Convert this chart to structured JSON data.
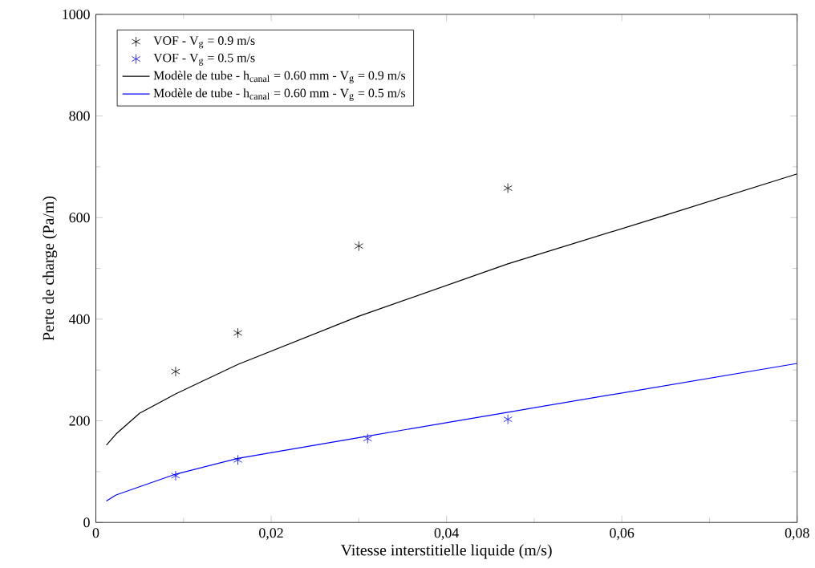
{
  "chart_data": {
    "type": "scatter",
    "xlabel": "Vitesse interstitielle liquide (m/s)",
    "ylabel": "Perte de charge (Pa/m)",
    "xlim": [
      0,
      0.08
    ],
    "ylim": [
      0,
      1000
    ],
    "xticks": [
      0,
      {
        "value": 0.02,
        "label": "0,02"
      },
      {
        "value": 0.04,
        "label": "0,04"
      },
      {
        "value": 0.06,
        "label": "0,06"
      },
      {
        "value": 0.08,
        "label": "0,08"
      }
    ],
    "yticks": [
      0,
      200,
      400,
      600,
      800,
      1000
    ],
    "legend": "top left",
    "grid": false,
    "series": [
      {
        "name": "VOF - V$_{g}$ = 0.9 m/s",
        "marker": "cross",
        "color": "#000000",
        "x": [
          0.0091,
          0.0162,
          0.03,
          0.047
        ],
        "values": [
          297,
          373,
          544,
          658
        ]
      },
      {
        "name": "VOF - V$_{g}$ = 0.5 m/s",
        "marker": "cross",
        "color": "#0000ff",
        "x": [
          0.0091,
          0.0162,
          0.031,
          0.047
        ],
        "values": [
          92,
          123,
          165,
          203
        ]
      },
      {
        "name": "Modèle de tube - h$_{canal}$ = 0.60 mm - V$_{g}$ = 0.9 m/s",
        "type": "line",
        "marker": "none",
        "line_style": "solid",
        "color": "#000000",
        "x": [
          0.0012,
          0.0023,
          0.005,
          0.0091,
          0.0162,
          0.03,
          0.047,
          0.065,
          0.08
        ],
        "values": [
          152,
          174,
          215,
          253,
          311,
          406,
          509,
          605,
          686
        ]
      },
      {
        "name": "Modèle de tube - h$_{canal}$ = 0.60 mm - V$_{g}$ = 0.5 m/s",
        "type": "line",
        "marker": "none",
        "line_style": "solid",
        "color": "#0000ff",
        "x": [
          0.0012,
          0.0023,
          0.0091,
          0.0162,
          0.031,
          0.047,
          0.08
        ],
        "values": [
          42,
          54,
          95,
          126,
          170,
          217,
          313
        ]
      }
    ]
  }
}
